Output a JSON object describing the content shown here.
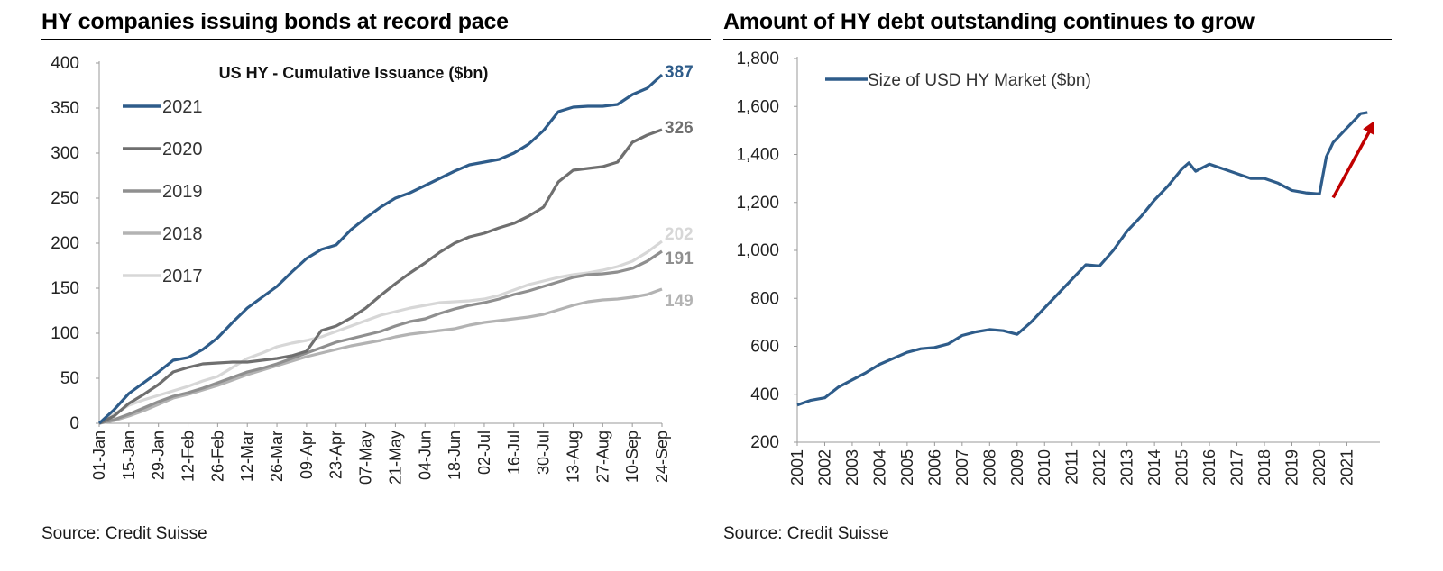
{
  "left_panel": {
    "title": "HY companies issuing bonds at record pace",
    "source": "Source: Credit Suisse"
  },
  "right_panel": {
    "title": "Amount of HY debt outstanding continues to grow",
    "source": "Source: Credit Suisse"
  },
  "chart_data": [
    {
      "type": "line",
      "title": "US HY - Cumulative Issuance ($bn)",
      "xlabel": "",
      "ylabel": "",
      "ylim": [
        0,
        400
      ],
      "yticks": [
        "0",
        "50",
        "100",
        "150",
        "200",
        "250",
        "300",
        "350",
        "400"
      ],
      "grid": false,
      "legend_position": "upper-left",
      "x_ticks": [
        "01-Jan",
        "15-Jan",
        "29-Jan",
        "12-Feb",
        "26-Feb",
        "12-Mar",
        "26-Mar",
        "09-Apr",
        "23-Apr",
        "07-May",
        "21-May",
        "04-Jun",
        "18-Jun",
        "02-Jul",
        "16-Jul",
        "30-Jul",
        "13-Aug",
        "27-Aug",
        "10-Sep",
        "24-Sep"
      ],
      "x_day_of_year": [
        1,
        15,
        29,
        43,
        57,
        71,
        85,
        99,
        113,
        127,
        141,
        155,
        169,
        183,
        197,
        211,
        225,
        239,
        253,
        267
      ],
      "series": [
        {
          "name": "2021",
          "color": "#2e5c8a",
          "end_label": "387",
          "x": [
            1,
            8,
            15,
            22,
            29,
            36,
            43,
            50,
            57,
            64,
            71,
            78,
            85,
            92,
            99,
            106,
            113,
            120,
            127,
            134,
            141,
            148,
            155,
            162,
            169,
            176,
            183,
            190,
            197,
            204,
            211,
            218,
            225,
            232,
            239,
            246,
            253,
            260,
            267
          ],
          "values": [
            0,
            15,
            33,
            45,
            57,
            70,
            73,
            82,
            95,
            112,
            128,
            140,
            152,
            168,
            183,
            193,
            198,
            215,
            228,
            240,
            250,
            256,
            264,
            272,
            280,
            287,
            290,
            293,
            300,
            310,
            325,
            346,
            351,
            352,
            352,
            354,
            365,
            372,
            387
          ]
        },
        {
          "name": "2020",
          "color": "#6f6f6f",
          "end_label": "326",
          "x": [
            1,
            8,
            15,
            22,
            29,
            36,
            43,
            50,
            57,
            64,
            71,
            78,
            85,
            92,
            99,
            106,
            113,
            120,
            127,
            134,
            141,
            148,
            155,
            162,
            169,
            176,
            183,
            190,
            197,
            204,
            211,
            218,
            225,
            232,
            239,
            246,
            253,
            260,
            267
          ],
          "values": [
            0,
            8,
            22,
            32,
            43,
            57,
            62,
            66,
            67,
            68,
            68,
            70,
            72,
            75,
            80,
            103,
            108,
            117,
            128,
            142,
            155,
            167,
            178,
            190,
            200,
            207,
            211,
            217,
            222,
            230,
            240,
            268,
            281,
            283,
            285,
            290,
            312,
            320,
            326
          ]
        },
        {
          "name": "2019",
          "color": "#8f8f8f",
          "end_label": "191",
          "x": [
            1,
            8,
            15,
            22,
            29,
            36,
            43,
            50,
            57,
            64,
            71,
            78,
            85,
            92,
            99,
            106,
            113,
            120,
            127,
            134,
            141,
            148,
            155,
            162,
            169,
            176,
            183,
            190,
            197,
            204,
            211,
            218,
            225,
            232,
            239,
            246,
            253,
            260,
            267
          ],
          "values": [
            0,
            4,
            10,
            17,
            24,
            30,
            34,
            39,
            45,
            51,
            57,
            61,
            66,
            72,
            78,
            84,
            90,
            94,
            98,
            102,
            108,
            113,
            116,
            122,
            127,
            131,
            134,
            138,
            143,
            147,
            152,
            157,
            162,
            165,
            166,
            168,
            172,
            180,
            191
          ]
        },
        {
          "name": "2018",
          "color": "#b3b3b3",
          "end_label": "149",
          "x": [
            1,
            8,
            15,
            22,
            29,
            36,
            43,
            50,
            57,
            64,
            71,
            78,
            85,
            92,
            99,
            106,
            113,
            120,
            127,
            134,
            141,
            148,
            155,
            162,
            169,
            176,
            183,
            190,
            197,
            204,
            211,
            218,
            225,
            232,
            239,
            246,
            253,
            260,
            267
          ],
          "values": [
            0,
            3,
            8,
            14,
            21,
            28,
            32,
            37,
            42,
            48,
            54,
            59,
            64,
            69,
            74,
            78,
            82,
            86,
            89,
            92,
            96,
            99,
            101,
            103,
            105,
            109,
            112,
            114,
            116,
            118,
            121,
            126,
            131,
            135,
            137,
            138,
            140,
            143,
            149
          ]
        },
        {
          "name": "2017",
          "color": "#d7d7d7",
          "end_label": "202",
          "x": [
            1,
            8,
            15,
            22,
            29,
            36,
            43,
            50,
            57,
            64,
            71,
            78,
            85,
            92,
            99,
            106,
            113,
            120,
            127,
            134,
            141,
            148,
            155,
            162,
            169,
            176,
            183,
            190,
            197,
            204,
            211,
            218,
            225,
            232,
            239,
            246,
            253,
            260,
            267
          ],
          "values": [
            0,
            10,
            20,
            26,
            31,
            36,
            41,
            47,
            52,
            62,
            72,
            78,
            85,
            89,
            92,
            96,
            102,
            108,
            114,
            120,
            124,
            128,
            131,
            134,
            135,
            136,
            138,
            142,
            148,
            154,
            158,
            162,
            165,
            167,
            170,
            174,
            180,
            190,
            202
          ]
        }
      ]
    },
    {
      "type": "line",
      "title": "",
      "xlabel": "",
      "ylabel": "",
      "ylim": [
        200,
        1800
      ],
      "yticks": [
        "200",
        "400",
        "600",
        "800",
        "1,000",
        "1,200",
        "1,400",
        "1,600",
        "1,800"
      ],
      "grid": false,
      "legend_position": "upper-left",
      "x_ticks": [
        "2001",
        "2002",
        "2003",
        "2004",
        "2005",
        "2006",
        "2007",
        "2008",
        "2009",
        "2010",
        "2011",
        "2012",
        "2013",
        "2014",
        "2015",
        "2016",
        "2017",
        "2018",
        "2019",
        "2020",
        "2021"
      ],
      "annotation": {
        "type": "arrow",
        "color": "#c00000",
        "from_year": 2020.5,
        "from_value": 1220,
        "to_year": 2022.0,
        "to_value": 1540
      },
      "series": [
        {
          "name": "Size of USD HY Market ($bn)",
          "color": "#2e5c8a",
          "x": [
            2001.0,
            2001.5,
            2002.0,
            2002.5,
            2003.0,
            2003.5,
            2004.0,
            2004.5,
            2005.0,
            2005.5,
            2006.0,
            2006.5,
            2007.0,
            2007.5,
            2008.0,
            2008.5,
            2009.0,
            2009.5,
            2010.0,
            2010.5,
            2011.0,
            2011.5,
            2012.0,
            2012.5,
            2013.0,
            2013.5,
            2014.0,
            2014.5,
            2015.0,
            2015.25,
            2015.5,
            2016.0,
            2016.5,
            2017.0,
            2017.5,
            2018.0,
            2018.5,
            2019.0,
            2019.5,
            2020.0,
            2020.25,
            2020.5,
            2021.0,
            2021.5,
            2021.75
          ],
          "values": [
            355,
            375,
            385,
            430,
            460,
            490,
            525,
            550,
            575,
            590,
            595,
            610,
            645,
            660,
            670,
            665,
            650,
            700,
            760,
            820,
            880,
            940,
            935,
            1000,
            1080,
            1140,
            1210,
            1270,
            1340,
            1365,
            1330,
            1360,
            1340,
            1320,
            1300,
            1300,
            1280,
            1250,
            1240,
            1235,
            1390,
            1450,
            1510,
            1570,
            1575
          ]
        }
      ]
    }
  ]
}
